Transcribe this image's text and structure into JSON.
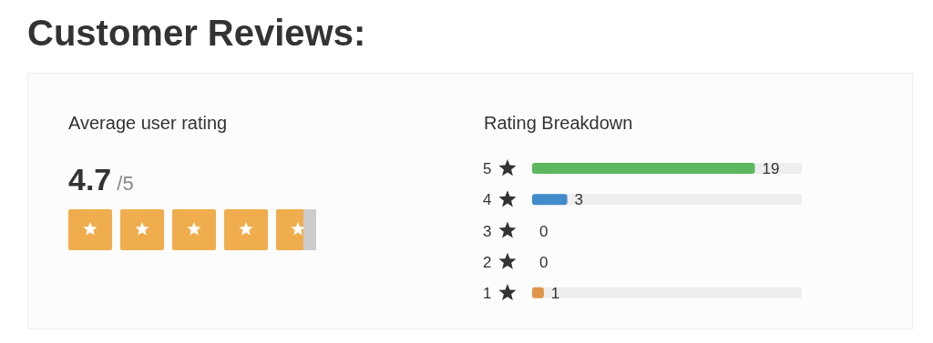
{
  "chart_data": [
    {
      "type": "other",
      "title": "Customer Reviews:",
      "subtitle": "Average user rating",
      "annotations": [
        "4.7",
        "/5"
      ]
    },
    {
      "type": "bar",
      "orientation": "horizontal",
      "title": "Rating Breakdown",
      "categories": [
        "5",
        "4",
        "3",
        "2",
        "1"
      ],
      "values": [
        19,
        3,
        0,
        0,
        1
      ],
      "colors": [
        "#5cb85c",
        "#428bca",
        "#5bc0de",
        "#f0ad4e",
        "#e0954a"
      ],
      "data_labels": true
    }
  ]
}
